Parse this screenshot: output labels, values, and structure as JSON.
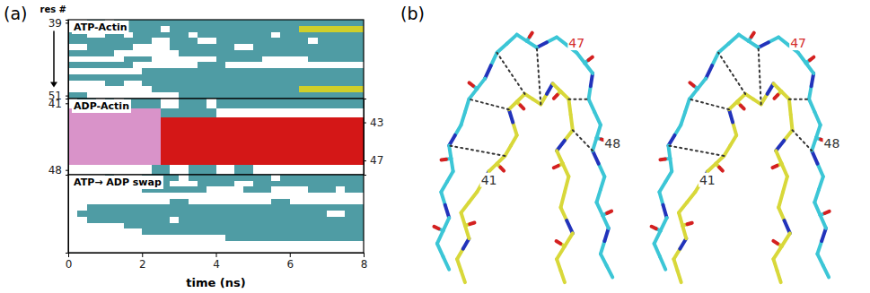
{
  "chart_data": {
    "type": "heatmap",
    "panel_label": "(a)",
    "x_label": "time (ns)",
    "y_label": "res #",
    "xlim": [
      0,
      8
    ],
    "xticks": [
      0,
      2,
      4,
      6,
      8
    ],
    "x_bins": [
      0,
      0.25,
      0.5,
      0.75,
      1,
      1.25,
      1.5,
      1.75,
      2,
      2.25,
      2.5,
      2.75,
      3,
      3.25,
      3.5,
      3.75,
      4,
      4.25,
      4.5,
      4.75,
      5,
      5.25,
      5.5,
      5.75,
      6,
      6.25,
      6.5,
      6.75,
      7,
      7.25,
      7.5,
      7.75,
      8
    ],
    "colors": [
      "#ffffff",
      "#4f9ca4",
      "#cfcf2a",
      "#d993c9",
      "#d41717"
    ],
    "panels": [
      {
        "title": "ATP-Actin",
        "ylim": [
          38.5,
          51.5
        ],
        "yticks": [
          39,
          51
        ],
        "rows": [
          39,
          40,
          41,
          42,
          43,
          44,
          45,
          46,
          47,
          48,
          49,
          50,
          51
        ],
        "cells": [
          [
            0,
            0,
            1,
            1,
            0,
            1,
            1,
            1,
            1,
            1,
            1,
            1,
            1,
            1,
            1,
            1,
            1,
            1,
            1,
            1,
            1,
            1,
            1,
            1,
            1,
            1,
            1,
            1,
            1,
            1,
            1,
            1
          ],
          [
            0,
            0,
            0,
            1,
            1,
            1,
            1,
            1,
            1,
            1,
            0,
            1,
            1,
            1,
            1,
            1,
            1,
            1,
            1,
            1,
            1,
            1,
            1,
            1,
            1,
            2,
            2,
            2,
            2,
            2,
            2,
            2
          ],
          [
            1,
            1,
            0,
            0,
            1,
            1,
            0,
            1,
            1,
            1,
            1,
            1,
            1,
            0,
            1,
            1,
            1,
            1,
            1,
            1,
            1,
            1,
            0,
            1,
            1,
            1,
            1,
            1,
            1,
            1,
            1,
            1
          ],
          [
            1,
            1,
            1,
            1,
            1,
            1,
            1,
            1,
            1,
            0,
            0,
            1,
            1,
            1,
            0,
            0,
            1,
            1,
            1,
            1,
            1,
            1,
            1,
            1,
            1,
            1,
            0,
            1,
            1,
            1,
            1,
            1
          ],
          [
            0,
            0,
            1,
            1,
            1,
            1,
            1,
            0,
            0,
            0,
            0,
            1,
            1,
            1,
            1,
            1,
            1,
            1,
            0,
            0,
            1,
            1,
            1,
            1,
            1,
            1,
            1,
            1,
            1,
            1,
            1,
            1
          ],
          [
            1,
            1,
            1,
            1,
            1,
            0,
            0,
            0,
            0,
            0,
            0,
            0,
            1,
            1,
            1,
            1,
            1,
            1,
            1,
            1,
            1,
            1,
            1,
            1,
            1,
            1,
            1,
            1,
            1,
            1,
            1,
            1
          ],
          [
            0,
            0,
            0,
            0,
            0,
            0,
            1,
            1,
            1,
            0,
            0,
            0,
            0,
            0,
            0,
            0,
            1,
            1,
            1,
            1,
            1,
            0,
            0,
            0,
            0,
            0,
            1,
            1,
            1,
            1,
            1,
            1
          ],
          [
            1,
            1,
            1,
            1,
            1,
            1,
            1,
            0,
            0,
            0,
            0,
            0,
            0,
            0,
            1,
            1,
            1,
            0,
            0,
            0,
            0,
            0,
            0,
            0,
            0,
            0,
            0,
            0,
            0,
            0,
            0,
            0
          ],
          [
            0,
            0,
            0,
            0,
            0,
            0,
            0,
            0,
            1,
            1,
            1,
            1,
            1,
            1,
            1,
            1,
            1,
            1,
            1,
            1,
            1,
            1,
            1,
            1,
            1,
            1,
            1,
            1,
            1,
            1,
            1,
            1
          ],
          [
            1,
            1,
            1,
            1,
            1,
            1,
            1,
            1,
            1,
            1,
            1,
            1,
            1,
            1,
            1,
            1,
            1,
            1,
            1,
            1,
            1,
            1,
            1,
            1,
            1,
            1,
            1,
            1,
            1,
            1,
            1,
            1
          ],
          [
            0,
            0,
            0,
            0,
            1,
            1,
            0,
            0,
            1,
            1,
            1,
            1,
            1,
            1,
            1,
            1,
            1,
            1,
            1,
            1,
            1,
            1,
            1,
            1,
            1,
            1,
            1,
            1,
            1,
            1,
            1,
            1
          ],
          [
            0,
            0,
            0,
            0,
            0,
            0,
            0,
            0,
            0,
            1,
            1,
            1,
            1,
            1,
            1,
            1,
            1,
            1,
            1,
            1,
            1,
            1,
            1,
            1,
            1,
            2,
            2,
            2,
            2,
            2,
            2,
            2
          ],
          [
            1,
            1,
            0,
            0,
            0,
            0,
            0,
            0,
            0,
            0,
            0,
            0,
            1,
            1,
            1,
            1,
            1,
            1,
            1,
            1,
            1,
            1,
            1,
            1,
            1,
            1,
            1,
            1,
            1,
            1,
            1,
            1
          ]
        ]
      },
      {
        "title": "ADP-Actin",
        "ylim": [
          40.5,
          48.5
        ],
        "yticks": [
          41,
          48
        ],
        "y2ticks": [
          43,
          47
        ],
        "rows": [
          41,
          42,
          43,
          44,
          45,
          46,
          47,
          48
        ],
        "cells": [
          [
            0,
            1,
            1,
            0,
            1,
            0,
            1,
            1,
            1,
            1,
            0,
            0,
            1,
            1,
            1,
            0,
            1,
            1,
            1,
            1,
            1,
            1,
            1,
            1,
            1,
            1,
            1,
            1,
            1,
            1,
            1,
            1
          ],
          [
            3,
            3,
            3,
            3,
            3,
            3,
            3,
            3,
            3,
            3,
            1,
            1,
            1,
            1,
            1,
            1,
            0,
            0,
            0,
            0,
            0,
            0,
            0,
            0,
            0,
            0,
            0,
            0,
            0,
            0,
            0,
            0
          ],
          [
            3,
            3,
            3,
            3,
            3,
            3,
            3,
            3,
            3,
            3,
            4,
            4,
            4,
            4,
            4,
            4,
            4,
            4,
            4,
            4,
            4,
            4,
            4,
            4,
            4,
            4,
            4,
            4,
            4,
            4,
            4,
            4
          ],
          [
            3,
            3,
            3,
            3,
            3,
            3,
            3,
            3,
            3,
            3,
            4,
            4,
            4,
            4,
            4,
            4,
            4,
            4,
            4,
            4,
            4,
            4,
            4,
            4,
            4,
            4,
            4,
            4,
            4,
            4,
            4,
            4
          ],
          [
            3,
            3,
            3,
            3,
            3,
            3,
            3,
            3,
            3,
            3,
            4,
            4,
            4,
            4,
            4,
            4,
            4,
            4,
            4,
            4,
            4,
            4,
            4,
            4,
            4,
            4,
            4,
            4,
            4,
            4,
            4,
            4
          ],
          [
            3,
            3,
            3,
            3,
            3,
            3,
            3,
            3,
            3,
            3,
            4,
            4,
            4,
            4,
            4,
            4,
            4,
            4,
            4,
            4,
            4,
            4,
            4,
            4,
            4,
            4,
            4,
            4,
            4,
            4,
            4,
            4
          ],
          [
            3,
            3,
            3,
            3,
            3,
            3,
            3,
            3,
            3,
            3,
            4,
            4,
            4,
            4,
            4,
            4,
            4,
            4,
            4,
            4,
            4,
            4,
            4,
            4,
            4,
            4,
            4,
            4,
            4,
            4,
            4,
            4
          ],
          [
            0,
            0,
            0,
            0,
            0,
            0,
            0,
            0,
            0,
            1,
            1,
            0,
            0,
            1,
            1,
            1,
            0,
            0,
            1,
            1,
            0,
            0,
            0,
            0,
            0,
            0,
            0,
            0,
            0,
            0,
            0,
            0
          ]
        ]
      },
      {
        "title": "ATP→ ADP swap",
        "ylim": [
          38.5,
          51.5
        ],
        "yticks": [],
        "rows": [
          39,
          40,
          41,
          42,
          43,
          44,
          45,
          46,
          47,
          48,
          49,
          50,
          51
        ],
        "cells": [
          [
            0,
            0,
            0,
            0,
            1,
            0,
            0,
            0,
            1,
            1,
            1,
            1,
            0,
            1,
            1,
            1,
            1,
            1,
            1,
            1,
            1,
            1,
            0,
            1,
            1,
            1,
            1,
            1,
            1,
            1,
            1,
            1
          ],
          [
            0,
            0,
            0,
            0,
            0,
            0,
            0,
            0,
            1,
            1,
            1,
            0,
            0,
            0,
            1,
            1,
            1,
            1,
            0,
            0,
            1,
            1,
            1,
            1,
            1,
            1,
            1,
            1,
            1,
            1,
            1,
            1
          ],
          [
            0,
            0,
            0,
            0,
            0,
            0,
            0,
            0,
            1,
            1,
            1,
            1,
            1,
            1,
            1,
            0,
            0,
            0,
            0,
            1,
            1,
            1,
            0,
            0,
            0,
            0,
            1,
            1,
            1,
            0,
            1,
            1
          ],
          [
            0,
            0,
            0,
            0,
            0,
            0,
            0,
            0,
            0,
            0,
            0,
            0,
            0,
            0,
            0,
            0,
            0,
            0,
            0,
            0,
            0,
            0,
            0,
            0,
            0,
            0,
            0,
            0,
            0,
            0,
            0,
            0
          ],
          [
            0,
            0,
            0,
            0,
            0,
            0,
            0,
            0,
            0,
            0,
            0,
            1,
            1,
            0,
            0,
            0,
            0,
            0,
            0,
            0,
            0,
            0,
            1,
            1,
            0,
            0,
            0,
            0,
            0,
            0,
            0,
            0
          ],
          [
            0,
            0,
            1,
            1,
            1,
            1,
            1,
            1,
            1,
            1,
            1,
            1,
            1,
            1,
            1,
            1,
            1,
            1,
            1,
            1,
            1,
            1,
            1,
            1,
            1,
            1,
            1,
            1,
            1,
            1,
            1,
            1
          ],
          [
            0,
            1,
            1,
            1,
            1,
            1,
            1,
            1,
            1,
            1,
            1,
            1,
            1,
            1,
            1,
            1,
            1,
            1,
            1,
            1,
            1,
            1,
            1,
            1,
            1,
            1,
            1,
            1,
            0,
            0,
            1,
            1
          ],
          [
            0,
            0,
            1,
            1,
            1,
            1,
            1,
            1,
            1,
            1,
            1,
            0,
            1,
            1,
            1,
            1,
            1,
            1,
            1,
            1,
            1,
            1,
            1,
            1,
            1,
            1,
            1,
            1,
            1,
            1,
            1,
            1
          ],
          [
            0,
            0,
            0,
            0,
            0,
            0,
            1,
            1,
            1,
            1,
            1,
            1,
            1,
            1,
            1,
            1,
            1,
            1,
            1,
            1,
            1,
            1,
            1,
            1,
            1,
            1,
            1,
            1,
            1,
            1,
            1,
            1
          ],
          [
            0,
            0,
            0,
            0,
            0,
            0,
            0,
            0,
            1,
            1,
            1,
            1,
            1,
            1,
            1,
            1,
            1,
            1,
            1,
            1,
            1,
            1,
            1,
            1,
            1,
            1,
            1,
            1,
            1,
            1,
            1,
            1
          ],
          [
            0,
            0,
            0,
            0,
            0,
            0,
            0,
            0,
            0,
            0,
            0,
            0,
            0,
            0,
            0,
            0,
            0,
            1,
            1,
            1,
            1,
            1,
            1,
            1,
            1,
            1,
            1,
            1,
            1,
            1,
            1,
            1
          ],
          [
            0,
            0,
            0,
            0,
            0,
            0,
            0,
            0,
            0,
            0,
            0,
            0,
            0,
            0,
            0,
            0,
            0,
            0,
            0,
            0,
            0,
            0,
            0,
            0,
            0,
            0,
            0,
            0,
            0,
            0,
            0,
            0
          ],
          [
            0,
            0,
            0,
            0,
            0,
            0,
            0,
            0,
            0,
            0,
            0,
            0,
            0,
            0,
            0,
            0,
            0,
            0,
            0,
            0,
            0,
            0,
            0,
            0,
            0,
            0,
            0,
            0,
            0,
            0,
            0,
            0
          ]
        ]
      }
    ]
  },
  "structure": {
    "panel_label": "(b)",
    "labels": [
      {
        "text": "47",
        "color": "#d42a2a"
      },
      {
        "text": "41",
        "color": "#333333"
      },
      {
        "text": "48",
        "color": "#333333"
      }
    ]
  }
}
